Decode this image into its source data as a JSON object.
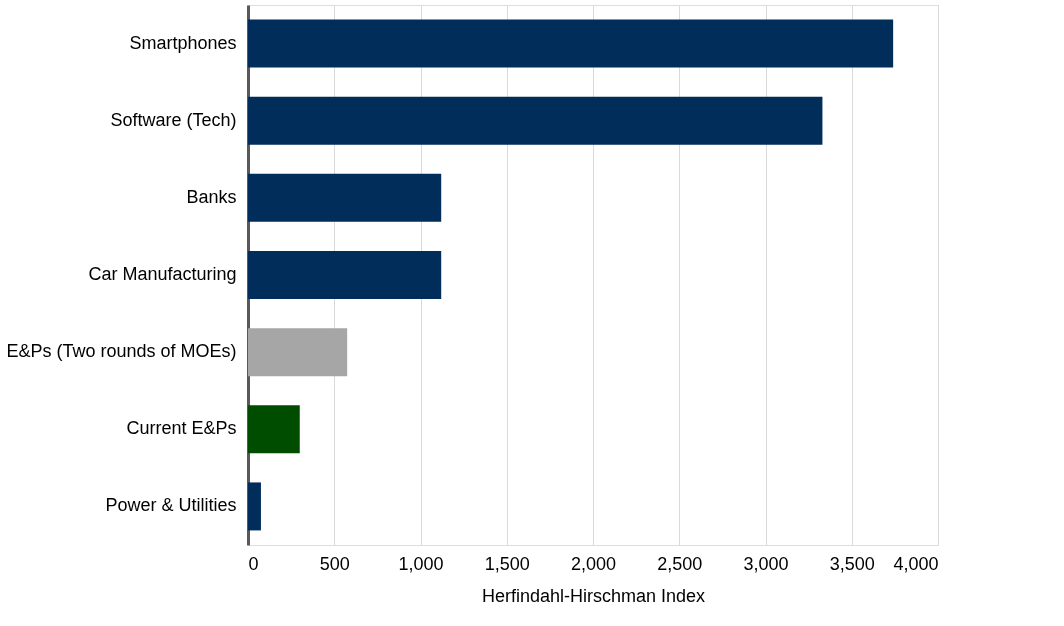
{
  "chart_data": {
    "type": "bar",
    "orientation": "horizontal",
    "categories": [
      "Smartphones",
      "Software (Tech)",
      "Banks",
      "Car Manufacturing",
      "E&Ps (Two rounds of MOEs)",
      "Current E&Ps",
      "Power & Utilities"
    ],
    "values": [
      3740,
      3330,
      1120,
      1120,
      575,
      300,
      75
    ],
    "colors": [
      "#002d5a",
      "#002d5a",
      "#002d5a",
      "#002d5a",
      "#a6a6a6",
      "#004d00",
      "#002d5a"
    ],
    "xlabel": "Herfindahl-Hirschman Index",
    "xlim": [
      0,
      4000
    ],
    "xticks": [
      0,
      500,
      {
        "value": 1000,
        "label": "1,000"
      },
      {
        "value": 1500,
        "label": "1,500"
      },
      {
        "value": 2000,
        "label": "2,000"
      },
      {
        "value": 2500,
        "label": "2,500"
      },
      {
        "value": 3000,
        "label": "3,000"
      },
      {
        "value": 3500,
        "label": "3,500"
      },
      {
        "value": 4000,
        "label": "4,000"
      }
    ],
    "grid": "x"
  }
}
